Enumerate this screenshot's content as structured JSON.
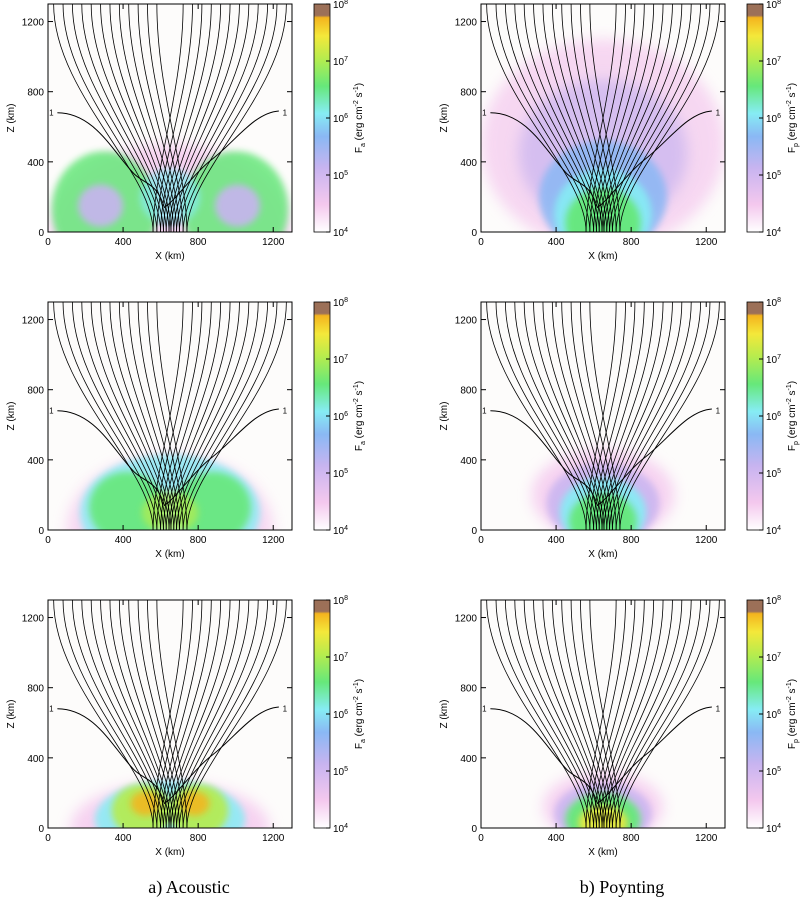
{
  "figure": {
    "captions": [
      "a) Acoustic",
      "b) Poynting"
    ]
  },
  "colors": {
    "white": "#ffffff",
    "pink": "#f4c8ee",
    "lavender": "#c8b4f0",
    "blue": "#8ab8f4",
    "cyan": "#86ecf4",
    "green": "#66e87a",
    "lime": "#b6ec4e",
    "yellow": "#f4e83a",
    "orange": "#f4b41e",
    "brown": "#9c7058"
  },
  "colorbar": {
    "tick_labels": [
      {
        "base": "10",
        "exp": "4"
      },
      {
        "base": "10",
        "exp": "5"
      },
      {
        "base": "10",
        "exp": "6"
      },
      {
        "base": "10",
        "exp": "7"
      },
      {
        "base": "10",
        "exp": "8"
      }
    ],
    "label_acoustic": {
      "F": "F",
      "sub": "a",
      "units": " (erg cm",
      "e1": "-2",
      "s": " s",
      "e2": "-1",
      "close": ")"
    },
    "label_poynting": {
      "F": "F",
      "sub": "p",
      "units": " (erg cm",
      "e1": "-2",
      "s": " s",
      "e2": "-1",
      "close": ")"
    }
  },
  "chart_data": [
    {
      "type": "heatmap",
      "panel": "acoustic-1",
      "xlabel": "X (km)",
      "ylabel": "Z (km)",
      "xlim": [
        0,
        1300
      ],
      "ylim": [
        0,
        1300
      ],
      "xticks": [
        "0",
        "400",
        "800",
        "1200"
      ],
      "yticks": [
        "0",
        "400",
        "800",
        "1200"
      ],
      "colorscale": "log",
      "clim": [
        10000,
        100000000
      ],
      "contour_level_label": "1"
    },
    {
      "type": "heatmap",
      "panel": "poynting-1",
      "xlabel": "X (km)",
      "ylabel": "Z (km)",
      "xlim": [
        0,
        1300
      ],
      "ylim": [
        0,
        1300
      ],
      "xticks": [
        "0",
        "400",
        "800",
        "1200"
      ],
      "yticks": [
        "0",
        "400",
        "800",
        "1200"
      ],
      "colorscale": "log",
      "clim": [
        10000,
        100000000
      ],
      "contour_level_label": "1"
    },
    {
      "type": "heatmap",
      "panel": "acoustic-2",
      "xlabel": "X (km)",
      "ylabel": "Z (km)",
      "xlim": [
        0,
        1300
      ],
      "ylim": [
        0,
        1300
      ],
      "xticks": [
        "0",
        "400",
        "800",
        "1200"
      ],
      "yticks": [
        "0",
        "400",
        "800",
        "1200"
      ],
      "colorscale": "log",
      "clim": [
        10000,
        100000000
      ],
      "contour_level_label": "1"
    },
    {
      "type": "heatmap",
      "panel": "poynting-2",
      "xlabel": "X (km)",
      "ylabel": "Z (km)",
      "xlim": [
        0,
        1300
      ],
      "ylim": [
        0,
        1300
      ],
      "xticks": [
        "0",
        "400",
        "800",
        "1200"
      ],
      "yticks": [
        "0",
        "400",
        "800",
        "1200"
      ],
      "colorscale": "log",
      "clim": [
        10000,
        100000000
      ],
      "contour_level_label": "1"
    },
    {
      "type": "heatmap",
      "panel": "acoustic-3",
      "xlabel": "X (km)",
      "ylabel": "Z (km)",
      "xlim": [
        0,
        1300
      ],
      "ylim": [
        0,
        1300
      ],
      "xticks": [
        "0",
        "400",
        "800",
        "1200"
      ],
      "yticks": [
        "0",
        "400",
        "800",
        "1200"
      ],
      "colorscale": "log",
      "clim": [
        10000,
        100000000
      ],
      "contour_level_label": "1"
    },
    {
      "type": "heatmap",
      "panel": "poynting-3",
      "xlabel": "X (km)",
      "ylabel": "Z (km)",
      "xlim": [
        0,
        1300
      ],
      "ylim": [
        0,
        1300
      ],
      "xticks": [
        "0",
        "400",
        "800",
        "1200"
      ],
      "yticks": [
        "0",
        "400",
        "800",
        "1200"
      ],
      "colorscale": "log",
      "clim": [
        10000,
        100000000
      ],
      "contour_level_label": "1"
    }
  ]
}
